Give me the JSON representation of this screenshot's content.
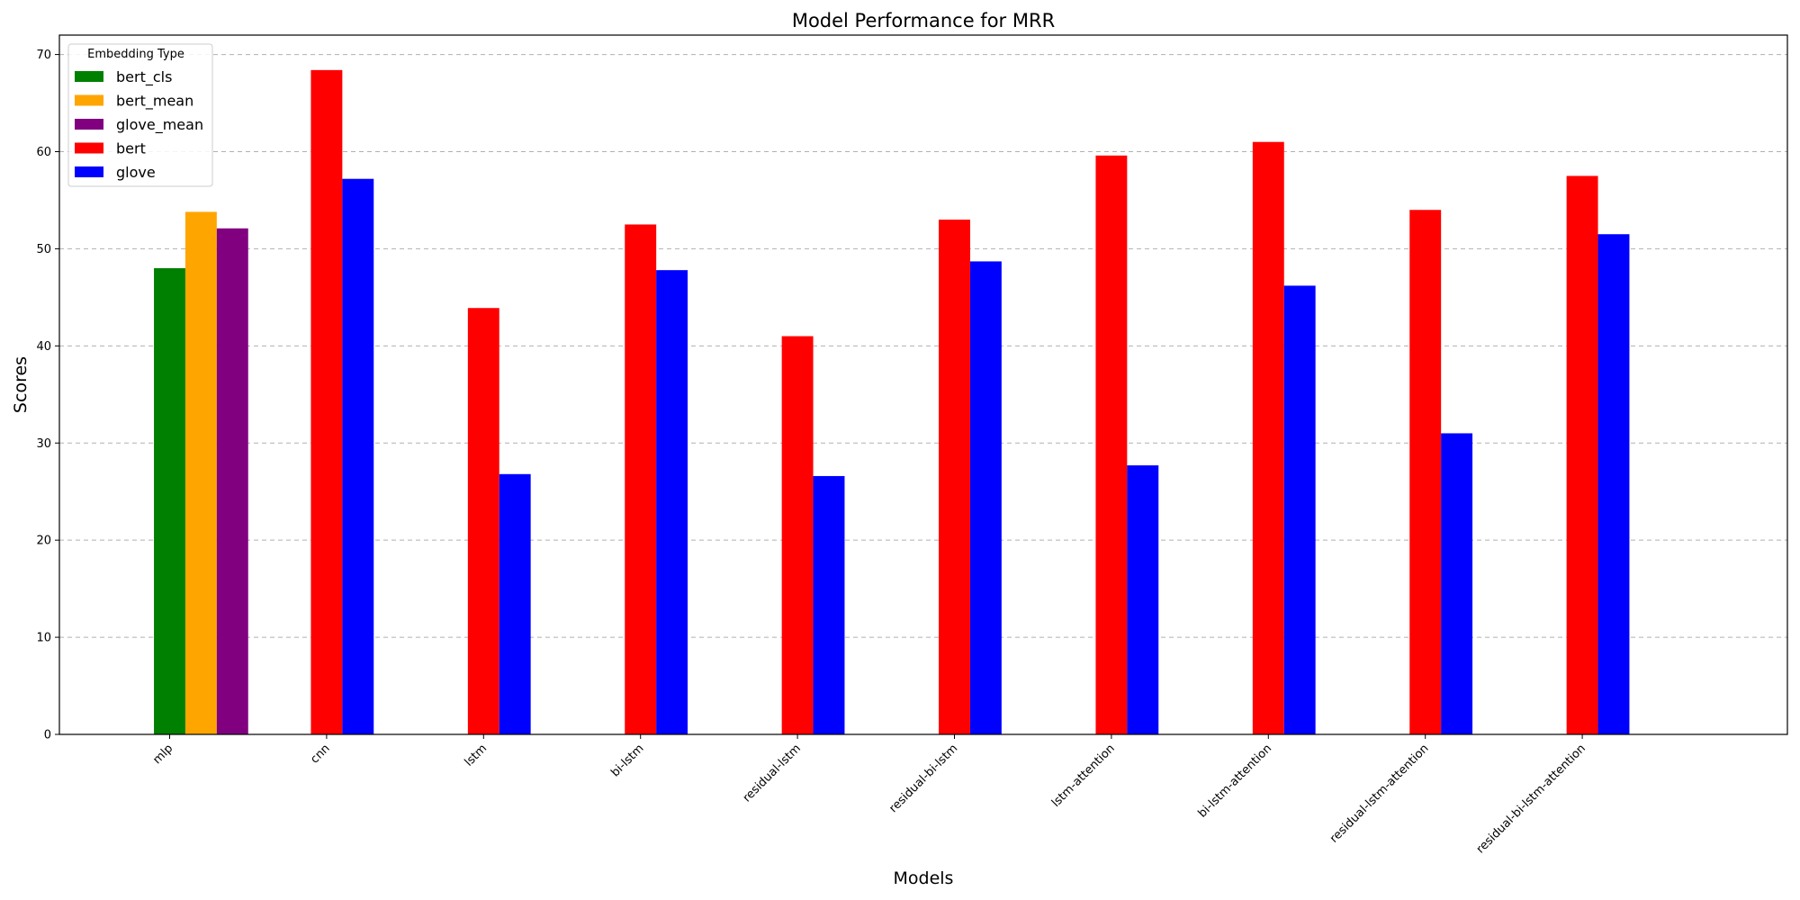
{
  "chart_data": {
    "type": "bar",
    "title": "Model Performance for MRR",
    "xlabel": "Models",
    "ylabel": "Scores",
    "ylim": [
      0,
      72
    ],
    "yticks": [
      0,
      10,
      20,
      30,
      40,
      50,
      60,
      70
    ],
    "grid": "y-dashed",
    "legend_title": "Embedding Type",
    "legend_position": "top-left",
    "categories": [
      "mlp",
      "cnn",
      "lstm",
      "bi-lstm",
      "residual-lstm",
      "residual-bi-lstm",
      "lstm-attention",
      "bi-lstm-attention",
      "residual-lstm-attention",
      "residual-bi-lstm-attention"
    ],
    "series": [
      {
        "name": "bert_cls",
        "color": "#008000",
        "values": [
          48.0,
          null,
          null,
          null,
          null,
          null,
          null,
          null,
          null,
          null
        ]
      },
      {
        "name": "bert_mean",
        "color": "#FFA500",
        "values": [
          53.8,
          null,
          null,
          null,
          null,
          null,
          null,
          null,
          null,
          null
        ]
      },
      {
        "name": "glove_mean",
        "color": "#800080",
        "values": [
          52.1,
          null,
          null,
          null,
          null,
          null,
          null,
          null,
          null,
          null
        ]
      },
      {
        "name": "bert",
        "color": "#FF0000",
        "values": [
          null,
          68.4,
          43.9,
          52.5,
          41.0,
          53.0,
          59.6,
          61.0,
          54.0,
          57.5
        ]
      },
      {
        "name": "glove",
        "color": "#0000FF",
        "values": [
          null,
          57.2,
          26.8,
          47.8,
          26.6,
          48.7,
          27.7,
          46.2,
          31.0,
          51.5
        ]
      }
    ]
  }
}
